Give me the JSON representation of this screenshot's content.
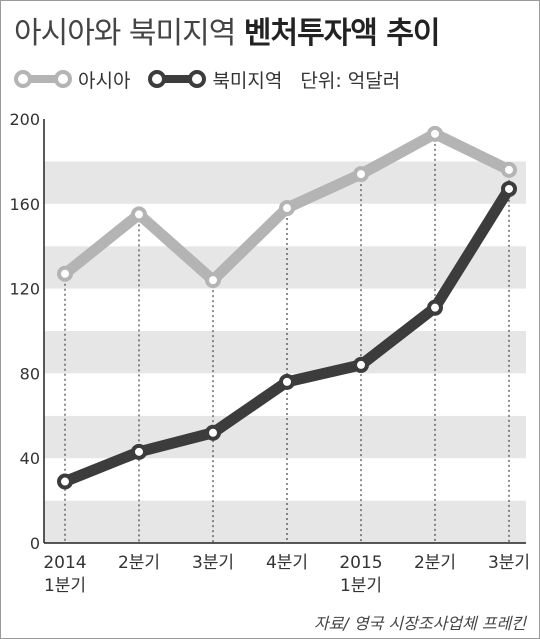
{
  "title_regular": "아시아와 북미지역",
  "title_bold": "벤처투자액 추이",
  "unit": "단위: 억달러",
  "source": "자료/ 영국 시장조사업체 프레킨",
  "colors": {
    "asia": "#b4b4b4",
    "north_america": "#3c3c3c",
    "band": "#e6e6e6"
  },
  "chart_data": {
    "type": "line",
    "title": "아시아와 북미지역 벤처투자액 추이",
    "ylabel": "단위: 억달러",
    "ylim": [
      0,
      200
    ],
    "yticks": [
      0,
      40,
      80,
      120,
      160,
      200
    ],
    "grid": "horizontal bands",
    "legend": "top-left",
    "categories": [
      [
        "2014",
        "1분기"
      ],
      [
        "2분기"
      ],
      [
        "3분기"
      ],
      [
        "4분기"
      ],
      [
        "2015",
        "1분기"
      ],
      [
        "2분기"
      ],
      [
        "3분기"
      ]
    ],
    "series": [
      {
        "name": "아시아",
        "values": [
          127,
          155,
          124,
          158,
          174,
          193,
          176
        ]
      },
      {
        "name": "북미지역",
        "values": [
          29,
          43,
          52,
          76,
          84,
          111,
          167
        ]
      }
    ]
  }
}
